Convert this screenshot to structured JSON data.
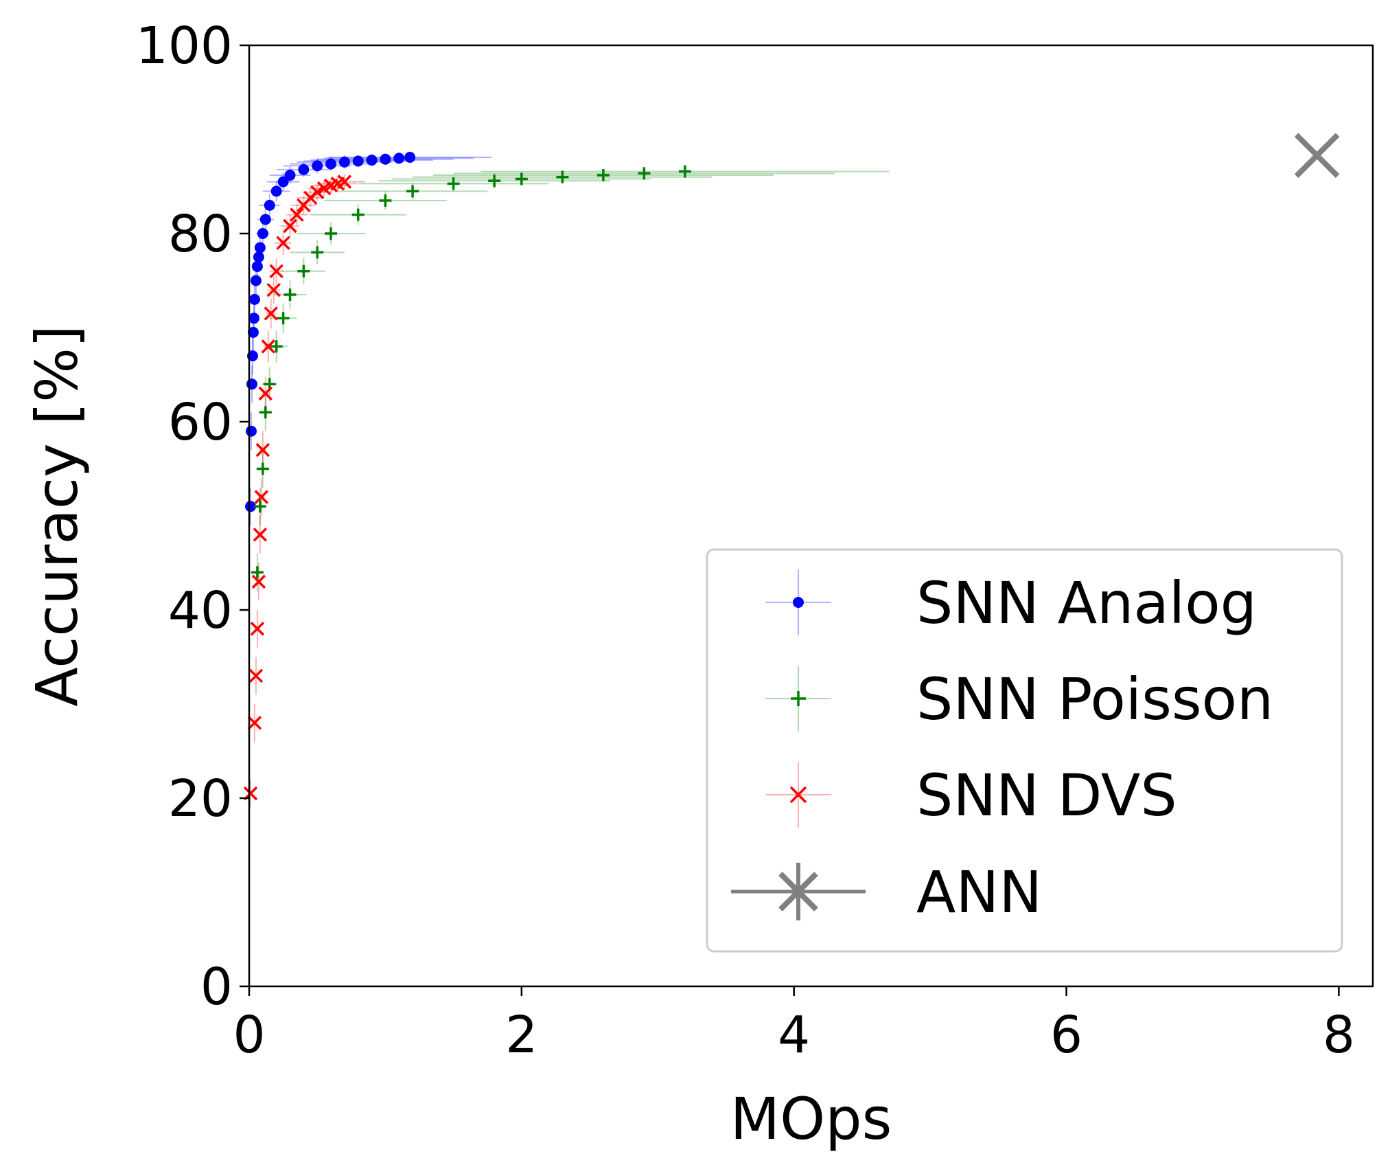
{
  "chart_data": {
    "type": "scatter",
    "xlabel": "MOps",
    "ylabel": "Accuracy [%]",
    "xlim": [
      0,
      8.25
    ],
    "ylim": [
      0,
      100
    ],
    "xticks": [
      0,
      2,
      4,
      6,
      8
    ],
    "yticks": [
      0,
      20,
      40,
      60,
      80,
      100
    ],
    "grid": false,
    "legend_position": "lower right",
    "series": [
      {
        "name": "SNN Analog",
        "color": "#0000ff",
        "marker": "dot",
        "x": [
          0.01,
          0.015,
          0.02,
          0.025,
          0.03,
          0.035,
          0.04,
          0.05,
          0.06,
          0.07,
          0.08,
          0.1,
          0.12,
          0.15,
          0.2,
          0.25,
          0.3,
          0.4,
          0.5,
          0.6,
          0.7,
          0.8,
          0.9,
          1.0,
          1.1,
          1.18
        ],
        "y": [
          51,
          59,
          64,
          67,
          69.5,
          71,
          73,
          75,
          76.5,
          77.5,
          78.5,
          80,
          81.5,
          83,
          84.5,
          85.5,
          86.2,
          86.8,
          87.2,
          87.4,
          87.6,
          87.7,
          87.8,
          87.9,
          88.0,
          88.1
        ],
        "xerr": [
          0.005,
          0.008,
          0.01,
          0.012,
          0.015,
          0.02,
          0.02,
          0.025,
          0.03,
          0.035,
          0.04,
          0.05,
          0.06,
          0.08,
          0.1,
          0.12,
          0.15,
          0.2,
          0.25,
          0.3,
          0.35,
          0.4,
          0.45,
          0.5,
          0.55,
          0.6
        ],
        "yerr": [
          2,
          2,
          2,
          2,
          2,
          2,
          1.8,
          1.8,
          1.6,
          1.5,
          1.5,
          1.4,
          1.3,
          1.2,
          1.1,
          1,
          0.9,
          0.8,
          0.8,
          0.7,
          0.7,
          0.6,
          0.6,
          0.6,
          0.6,
          0.6
        ]
      },
      {
        "name": "SNN Poisson",
        "color": "#008000",
        "marker": "plus",
        "x": [
          0.06,
          0.08,
          0.1,
          0.12,
          0.15,
          0.2,
          0.25,
          0.3,
          0.4,
          0.5,
          0.6,
          0.8,
          1.0,
          1.2,
          1.5,
          1.8,
          2.0,
          2.3,
          2.6,
          2.9,
          3.2
        ],
        "y": [
          44,
          51,
          55,
          61,
          64,
          68,
          71,
          73.5,
          76,
          78,
          80,
          82,
          83.5,
          84.5,
          85.3,
          85.6,
          85.8,
          86.0,
          86.2,
          86.4,
          86.6
        ],
        "xerr": [
          0.02,
          0.03,
          0.04,
          0.05,
          0.06,
          0.08,
          0.1,
          0.12,
          0.16,
          0.2,
          0.25,
          0.35,
          0.45,
          0.55,
          0.7,
          0.85,
          0.95,
          1.1,
          1.25,
          1.4,
          1.5
        ],
        "yerr": [
          2,
          2,
          2,
          2,
          1.8,
          1.7,
          1.6,
          1.5,
          1.4,
          1.3,
          1.2,
          1.1,
          1,
          0.9,
          0.8,
          0.8,
          0.7,
          0.7,
          0.6,
          0.6,
          0.6
        ]
      },
      {
        "name": "SNN DVS",
        "color": "#ff0000",
        "marker": "x",
        "x": [
          0.01,
          0.04,
          0.05,
          0.06,
          0.07,
          0.08,
          0.09,
          0.1,
          0.12,
          0.14,
          0.16,
          0.18,
          0.2,
          0.25,
          0.3,
          0.35,
          0.4,
          0.45,
          0.5,
          0.55,
          0.6,
          0.65,
          0.7
        ],
        "y": [
          20.5,
          28,
          33,
          38,
          43,
          48,
          52,
          57,
          63,
          68,
          71.5,
          74,
          76,
          79,
          80.8,
          82,
          83,
          83.8,
          84.4,
          84.8,
          85.1,
          85.3,
          85.5
        ],
        "xerr": [
          0.005,
          0.01,
          0.012,
          0.015,
          0.018,
          0.02,
          0.022,
          0.025,
          0.03,
          0.035,
          0.04,
          0.045,
          0.05,
          0.06,
          0.07,
          0.08,
          0.09,
          0.1,
          0.11,
          0.12,
          0.13,
          0.14,
          0.15
        ],
        "yerr": [
          1.5,
          2,
          2,
          2,
          2,
          2,
          2,
          2,
          1.8,
          1.7,
          1.6,
          1.5,
          1.4,
          1.3,
          1.2,
          1.1,
          1,
          1,
          0.9,
          0.9,
          0.8,
          0.8,
          0.8
        ]
      },
      {
        "name": "ANN",
        "color": "#808080",
        "marker": "x-large",
        "x": [
          7.84
        ],
        "y": [
          88.3
        ],
        "xerr": [
          0.0
        ],
        "yerr": [
          0.3
        ]
      }
    ]
  }
}
